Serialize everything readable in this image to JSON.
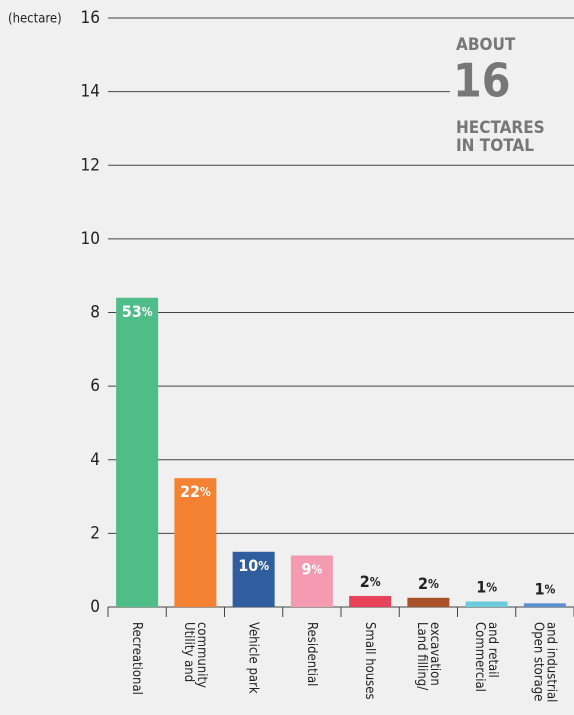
{
  "chart_data": {
    "type": "bar",
    "y_axis_label": "(hectare)",
    "categories": [
      "Recreational",
      "Utility and\ncommunity",
      "Vehicle park",
      "Residential",
      "Small houses",
      "Land filling/\nexcavation",
      "Commercial\nand retail",
      "Open storage\nand industrial"
    ],
    "values": [
      8.4,
      3.5,
      1.5,
      1.4,
      0.3,
      0.25,
      0.15,
      0.1
    ],
    "share_labels": [
      "53%",
      "22%",
      "10%",
      "9%",
      "2%",
      "2%",
      "1%",
      "1%"
    ],
    "colors": [
      "#4ebd87",
      "#f58233",
      "#2f5d9e",
      "#f49ab1",
      "#e8415a",
      "#a9522a",
      "#6ccbdc",
      "#5b8fd4"
    ],
    "ylim": [
      0,
      16
    ],
    "yticks": [
      0,
      2,
      4,
      6,
      8,
      10,
      12,
      14,
      16
    ],
    "grid": true,
    "annotation": {
      "line1": "ABOUT",
      "number": "16",
      "line2": "HECTARES",
      "line3": "IN TOTAL"
    }
  }
}
